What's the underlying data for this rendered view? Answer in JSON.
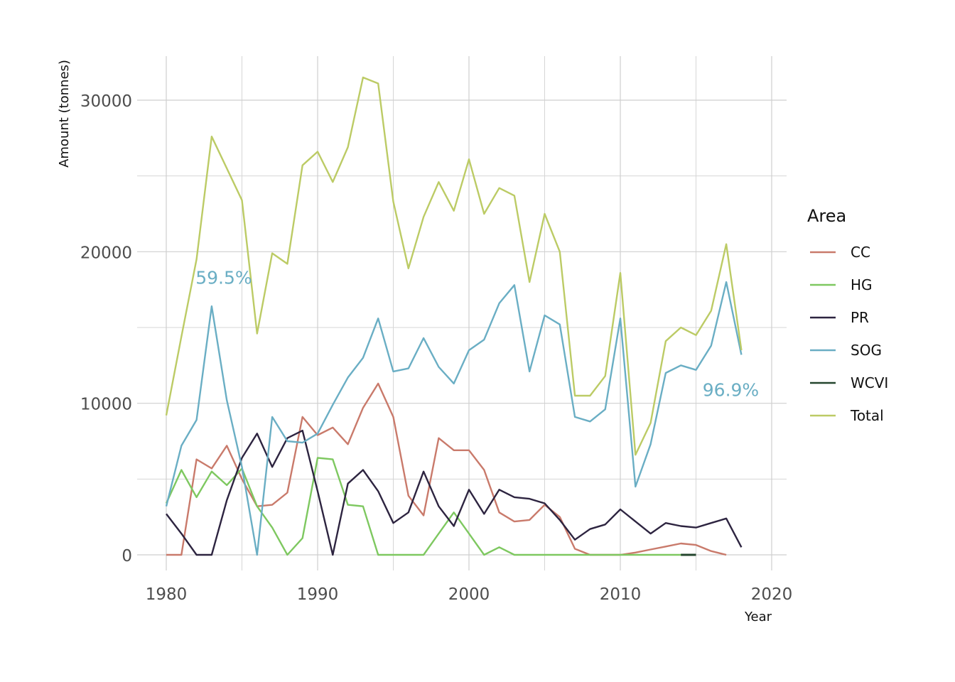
{
  "chart_data": {
    "type": "line",
    "title": "",
    "xlabel": "Year",
    "ylabel": "Amount (tonnes)",
    "xlim": [
      1980,
      2020
    ],
    "ylim": [
      0,
      32000
    ],
    "x_ticks": [
      1980,
      1990,
      2000,
      2010,
      2020
    ],
    "y_ticks": [
      0,
      10000,
      20000,
      30000
    ],
    "grid": true,
    "legend": {
      "title": "Area",
      "placement": "right"
    },
    "series": [
      {
        "name": "CC",
        "color": "#c97a6b",
        "x": [
          1980,
          1981,
          1982,
          1983,
          1984,
          1985,
          1986,
          1987,
          1988,
          1989,
          1990,
          1991,
          1992,
          1993,
          1994,
          1995,
          1996,
          1997,
          1998,
          1999,
          2000,
          2001,
          2002,
          2003,
          2004,
          2005,
          2006,
          2007,
          2008,
          2009,
          2010,
          2011,
          2012,
          2013,
          2014,
          2015,
          2016,
          2017
        ],
        "values": [
          0,
          0,
          6300,
          5700,
          7200,
          5000,
          3200,
          3300,
          4100,
          9100,
          7900,
          8400,
          7300,
          9700,
          11300,
          9100,
          3900,
          2600,
          7700,
          6900,
          6900,
          5600,
          2800,
          2200,
          2300,
          3300,
          2500,
          400,
          0,
          0,
          0,
          150,
          350,
          550,
          750,
          650,
          250,
          0
        ]
      },
      {
        "name": "HG",
        "color": "#7ec860",
        "x": [
          1980,
          1981,
          1982,
          1983,
          1984,
          1985,
          1986,
          1987,
          1988,
          1989,
          1990,
          1991,
          1992,
          1993,
          1994,
          1995,
          1996,
          1997,
          1998,
          1999,
          2000,
          2001,
          2002,
          2003,
          2004,
          2005,
          2006,
          2007,
          2008,
          2009,
          2010,
          2011,
          2012,
          2013,
          2014,
          2015
        ],
        "values": [
          3400,
          5600,
          3800,
          5500,
          4600,
          5700,
          3200,
          1800,
          0,
          1100,
          6400,
          6300,
          3300,
          3200,
          0,
          0,
          0,
          0,
          1400,
          2800,
          1400,
          0,
          500,
          0,
          0,
          0,
          0,
          0,
          0,
          0,
          0,
          0,
          0,
          0,
          0,
          0
        ]
      },
      {
        "name": "PR",
        "color": "#2d2440",
        "x": [
          1980,
          1981,
          1982,
          1983,
          1984,
          1985,
          1986,
          1987,
          1988,
          1989,
          1990,
          1991,
          1992,
          1993,
          1994,
          1995,
          1996,
          1997,
          1998,
          1999,
          2000,
          2001,
          2002,
          2003,
          2004,
          2005,
          2006,
          2007,
          2008,
          2009,
          2010,
          2011,
          2012,
          2013,
          2014,
          2015,
          2016,
          2017,
          2018
        ],
        "values": [
          2700,
          1400,
          0,
          0,
          3600,
          6400,
          8000,
          5800,
          7700,
          8200,
          4200,
          0,
          4700,
          5600,
          4200,
          2100,
          2800,
          5500,
          3200,
          1900,
          4300,
          2700,
          4300,
          3800,
          3700,
          3400,
          2300,
          1000,
          1700,
          2000,
          3000,
          2200,
          1400,
          2100,
          1900,
          1800,
          2100,
          2400,
          500
        ]
      },
      {
        "name": "SOG",
        "color": "#6aaec4",
        "x": [
          1980,
          1981,
          1982,
          1983,
          1984,
          1985,
          1986,
          1987,
          1988,
          1989,
          1990,
          1991,
          1992,
          1993,
          1994,
          1995,
          1996,
          1997,
          1998,
          1999,
          2000,
          2001,
          2002,
          2003,
          2004,
          2005,
          2006,
          2007,
          2008,
          2009,
          2010,
          2011,
          2012,
          2013,
          2014,
          2015,
          2016,
          2017,
          2018
        ],
        "values": [
          3200,
          7200,
          8900,
          16400,
          10200,
          5800,
          0,
          9100,
          7500,
          7400,
          8000,
          9900,
          11700,
          13000,
          15600,
          12100,
          12300,
          14300,
          12400,
          11300,
          13500,
          14200,
          16600,
          17800,
          12100,
          15800,
          15200,
          9100,
          8800,
          9600,
          15600,
          4500,
          7300,
          12000,
          12500,
          12200,
          13800,
          18000,
          13200
        ]
      },
      {
        "name": "WCVI",
        "color": "#24452e",
        "x": [
          2014,
          2015
        ],
        "values": [
          0,
          0
        ]
      },
      {
        "name": "Total",
        "color": "#bccb65",
        "x": [
          1980,
          1981,
          1982,
          1983,
          1984,
          1985,
          1986,
          1987,
          1988,
          1989,
          1990,
          1991,
          1992,
          1993,
          1994,
          1995,
          1996,
          1997,
          1998,
          1999,
          2000,
          2001,
          2002,
          2003,
          2004,
          2005,
          2006,
          2007,
          2008,
          2009,
          2010,
          2011,
          2012,
          2013,
          2014,
          2015,
          2016,
          2017,
          2018
        ],
        "values": [
          9200,
          14400,
          19500,
          27600,
          25500,
          23400,
          14600,
          19900,
          19200,
          25700,
          26600,
          24600,
          26900,
          31500,
          31100,
          23300,
          18900,
          22300,
          24600,
          22700,
          26100,
          22500,
          24200,
          23700,
          18000,
          22500,
          20000,
          10500,
          10500,
          11800,
          18600,
          6600,
          8700,
          14100,
          15000,
          14500,
          16100,
          20500,
          13500
        ]
      }
    ],
    "annotations": [
      {
        "text": "59.5%",
        "x": 1983.8,
        "y": 18300,
        "color": "#6aaec4"
      },
      {
        "text": "96.9%",
        "x": 2017.3,
        "y": 10900,
        "color": "#6aaec4"
      }
    ]
  }
}
